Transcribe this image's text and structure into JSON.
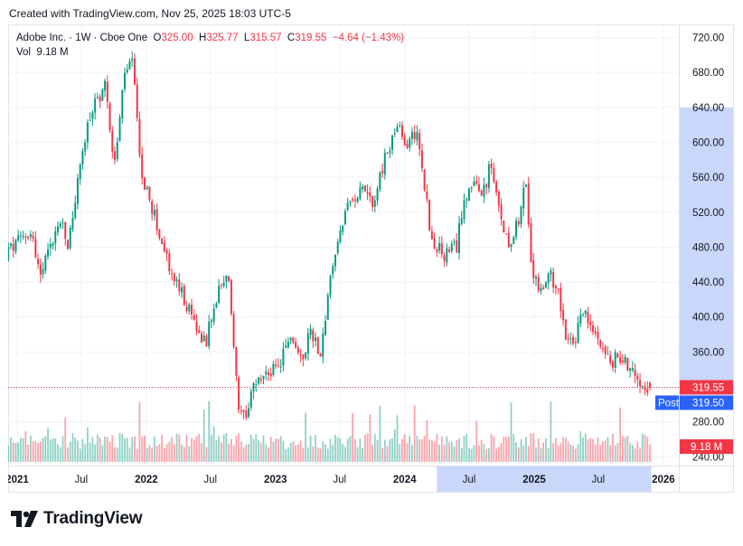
{
  "header": {
    "created": "Created with TradingView.com, Nov 25, 2025 18:03 UTC-5"
  },
  "legend": {
    "symbol": "Adobe Inc. · 1W · Cboe One",
    "o_label": "O",
    "o_value": "325.00",
    "h_label": "H",
    "h_value": "325.77",
    "l_label": "L",
    "l_value": "315.57",
    "c_label": "C",
    "c_value": "319.55",
    "change": "−4.64 (−1.43%)",
    "vol_label": "Vol",
    "vol_value": "9.18 M"
  },
  "badges": {
    "last_price": "319.55",
    "post_label": "Post",
    "post_price": "319.50",
    "volume": "9.18 M"
  },
  "footer": {
    "brand": "TradingView"
  },
  "colors": {
    "up": "#089981",
    "down": "#f23645",
    "post": "#2962ff",
    "highlight": "#c9d7fb"
  },
  "chart_data": {
    "type": "candlestick",
    "ylim": [
      230,
      735
    ],
    "yticks": [
      "720.00",
      "680.00",
      "640.00",
      "600.00",
      "560.00",
      "520.00",
      "480.00",
      "440.00",
      "400.00",
      "360.00",
      "320.00",
      "280.00",
      "240.00"
    ],
    "xticks": [
      "2021",
      "Jul",
      "2022",
      "Jul",
      "2023",
      "Jul",
      "2024",
      "Jul",
      "2025",
      "Jul",
      "2026"
    ],
    "last_price": 319.55,
    "post_price": 319.5,
    "highlight_range": [
      "2024-04",
      "2025-11"
    ],
    "anchors": [
      {
        "t": "2020-11-23",
        "p": 470
      },
      {
        "t": "2021-01-04",
        "p": 485
      },
      {
        "t": "2021-02-08",
        "p": 500
      },
      {
        "t": "2021-03-08",
        "p": 445
      },
      {
        "t": "2021-04-05",
        "p": 480
      },
      {
        "t": "2021-05-03",
        "p": 510
      },
      {
        "t": "2021-05-24",
        "p": 480
      },
      {
        "t": "2021-07-05",
        "p": 590
      },
      {
        "t": "2021-08-02",
        "p": 640
      },
      {
        "t": "2021-09-06",
        "p": 665
      },
      {
        "t": "2021-10-04",
        "p": 575
      },
      {
        "t": "2021-11-01",
        "p": 680
      },
      {
        "t": "2021-11-22",
        "p": 690
      },
      {
        "t": "2021-12-20",
        "p": 560
      },
      {
        "t": "2022-01-24",
        "p": 515
      },
      {
        "t": "2022-03-07",
        "p": 455
      },
      {
        "t": "2022-04-18",
        "p": 420
      },
      {
        "t": "2022-05-23",
        "p": 385
      },
      {
        "t": "2022-06-20",
        "p": 375
      },
      {
        "t": "2022-07-25",
        "p": 430
      },
      {
        "t": "2022-08-22",
        "p": 445
      },
      {
        "t": "2022-09-19",
        "p": 290
      },
      {
        "t": "2022-10-10",
        "p": 280
      },
      {
        "t": "2022-10-31",
        "p": 320
      },
      {
        "t": "2022-12-05",
        "p": 335
      },
      {
        "t": "2023-01-09",
        "p": 340
      },
      {
        "t": "2023-02-13",
        "p": 380
      },
      {
        "t": "2023-03-13",
        "p": 350
      },
      {
        "t": "2023-04-10",
        "p": 385
      },
      {
        "t": "2023-05-08",
        "p": 360
      },
      {
        "t": "2023-06-12",
        "p": 460
      },
      {
        "t": "2023-07-10",
        "p": 510
      },
      {
        "t": "2023-08-07",
        "p": 535
      },
      {
        "t": "2023-09-04",
        "p": 555
      },
      {
        "t": "2023-10-02",
        "p": 530
      },
      {
        "t": "2023-11-06",
        "p": 580
      },
      {
        "t": "2023-12-11",
        "p": 620
      },
      {
        "t": "2024-01-01",
        "p": 595
      },
      {
        "t": "2024-02-05",
        "p": 615
      },
      {
        "t": "2024-02-26",
        "p": 550
      },
      {
        "t": "2024-03-18",
        "p": 485
      },
      {
        "t": "2024-04-22",
        "p": 470
      },
      {
        "t": "2024-05-27",
        "p": 480
      },
      {
        "t": "2024-06-17",
        "p": 540
      },
      {
        "t": "2024-07-08",
        "p": 550
      },
      {
        "t": "2024-08-05",
        "p": 540
      },
      {
        "t": "2024-09-02",
        "p": 575
      },
      {
        "t": "2024-09-23",
        "p": 520
      },
      {
        "t": "2024-10-21",
        "p": 485
      },
      {
        "t": "2024-11-18",
        "p": 515
      },
      {
        "t": "2024-12-09",
        "p": 555
      },
      {
        "t": "2024-12-23",
        "p": 455
      },
      {
        "t": "2025-01-20",
        "p": 430
      },
      {
        "t": "2025-02-17",
        "p": 445
      },
      {
        "t": "2025-03-10",
        "p": 435
      },
      {
        "t": "2025-03-31",
        "p": 375
      },
      {
        "t": "2025-04-21",
        "p": 365
      },
      {
        "t": "2025-05-19",
        "p": 410
      },
      {
        "t": "2025-06-09",
        "p": 385
      },
      {
        "t": "2025-07-07",
        "p": 375
      },
      {
        "t": "2025-08-04",
        "p": 345
      },
      {
        "t": "2025-08-25",
        "p": 355
      },
      {
        "t": "2025-09-15",
        "p": 350
      },
      {
        "t": "2025-10-13",
        "p": 335
      },
      {
        "t": "2025-11-24",
        "p": 319.55
      }
    ]
  }
}
